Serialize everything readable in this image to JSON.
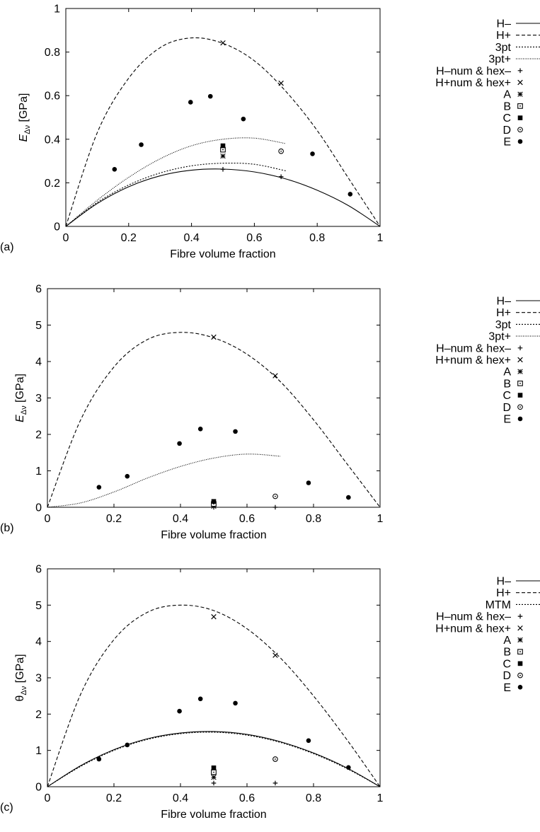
{
  "chart_data": [
    {
      "type": "line",
      "panel_label": "(a)",
      "xlabel": "Fibre volume fraction",
      "ylabel": {
        "main": "E",
        "sub": "Δν",
        "unit": " [GPa]"
      },
      "xlim": [
        0,
        1
      ],
      "ylim": [
        0,
        1
      ],
      "xticks": [
        "0",
        "0.2",
        "0.4",
        "0.6",
        "0.8",
        "1"
      ],
      "yticks": [
        "0",
        "0.2",
        "0.4",
        "0.6",
        "0.8",
        "1"
      ],
      "legend": "top-right",
      "series": [
        {
          "name": "H–",
          "style": "solid",
          "x": [
            0,
            0.1,
            0.2,
            0.3,
            0.4,
            0.5,
            0.6,
            0.7,
            0.8,
            0.9,
            1
          ],
          "values": [
            0,
            0.105,
            0.182,
            0.232,
            0.258,
            0.263,
            0.25,
            0.218,
            0.166,
            0.095,
            0
          ]
        },
        {
          "name": "H+",
          "style": "dashed",
          "x": [
            0,
            0.1,
            0.2,
            0.3,
            0.4,
            0.5,
            0.6,
            0.7,
            0.8,
            0.9,
            1
          ],
          "values": [
            0,
            0.43,
            0.68,
            0.82,
            0.865,
            0.84,
            0.76,
            0.62,
            0.44,
            0.22,
            0
          ]
        },
        {
          "name": "3pt",
          "style": "dotted",
          "x": [
            0,
            0.1,
            0.2,
            0.3,
            0.4,
            0.5,
            0.6,
            0.7
          ],
          "values": [
            0,
            0.11,
            0.19,
            0.245,
            0.278,
            0.29,
            0.285,
            0.255
          ]
        },
        {
          "name": "3pt+",
          "style": "fine-dotted",
          "x": [
            0,
            0.1,
            0.2,
            0.3,
            0.4,
            0.5,
            0.6,
            0.7
          ],
          "values": [
            0,
            0.12,
            0.225,
            0.31,
            0.37,
            0.4,
            0.405,
            0.38
          ]
        },
        {
          "name": "H–num & hex–",
          "marker": "plus",
          "points": [
            [
              0.5,
              0.262
            ],
            [
              0.685,
              0.228
            ]
          ]
        },
        {
          "name": "H+num & hex+",
          "marker": "cross",
          "points": [
            [
              0.5,
              0.842
            ],
            [
              0.685,
              0.657
            ]
          ]
        },
        {
          "name": "A",
          "marker": "star",
          "points": [
            [
              0.5,
              0.323
            ]
          ]
        },
        {
          "name": "B",
          "marker": "dotted-square",
          "points": [
            [
              0.5,
              0.352
            ]
          ]
        },
        {
          "name": "C",
          "marker": "filled-square",
          "points": [
            [
              0.5,
              0.37
            ]
          ]
        },
        {
          "name": "D",
          "marker": "dotted-circle",
          "points": [
            [
              0.685,
              0.345
            ]
          ]
        },
        {
          "name": "E",
          "marker": "filled-circle",
          "points": [
            [
              0.155,
              0.262
            ],
            [
              0.24,
              0.375
            ],
            [
              0.397,
              0.57
            ],
            [
              0.46,
              0.597
            ],
            [
              0.565,
              0.493
            ],
            [
              0.785,
              0.333
            ],
            [
              0.905,
              0.148
            ]
          ]
        }
      ]
    },
    {
      "type": "line",
      "panel_label": "(b)",
      "xlabel": "Fibre volume fraction",
      "ylabel": {
        "main": "E",
        "sub": "Δν",
        "unit": " [GPa]"
      },
      "xlim": [
        0,
        1
      ],
      "ylim": [
        0,
        6
      ],
      "xticks": [
        "0",
        "0.2",
        "0.4",
        "0.6",
        "0.8",
        "1"
      ],
      "yticks": [
        "0",
        "1",
        "2",
        "3",
        "4",
        "5",
        "6"
      ],
      "legend": "top-right",
      "series": [
        {
          "name": "H–",
          "style": "solid",
          "x": [
            0,
            1
          ],
          "values": [
            0,
            0
          ]
        },
        {
          "name": "H+",
          "style": "dashed",
          "x": [
            0,
            0.1,
            0.2,
            0.3,
            0.4,
            0.5,
            0.6,
            0.7,
            0.8,
            0.9,
            1
          ],
          "values": [
            0,
            2.4,
            3.85,
            4.6,
            4.8,
            4.65,
            4.2,
            3.45,
            2.4,
            1.2,
            0
          ]
        },
        {
          "name": "3pt",
          "style": "dotted",
          "x": [
            0,
            0.7
          ],
          "values": [
            0,
            0
          ]
        },
        {
          "name": "3pt+",
          "style": "fine-dotted",
          "x": [
            0,
            0.1,
            0.2,
            0.3,
            0.4,
            0.5,
            0.6,
            0.7
          ],
          "values": [
            0,
            0.12,
            0.42,
            0.8,
            1.12,
            1.35,
            1.46,
            1.4
          ]
        },
        {
          "name": "H–num & hex–",
          "marker": "plus",
          "points": [
            [
              0.5,
              0.0
            ],
            [
              0.685,
              0.0
            ]
          ]
        },
        {
          "name": "H+num & hex+",
          "marker": "cross",
          "points": [
            [
              0.5,
              4.67
            ],
            [
              0.685,
              3.61
            ]
          ]
        },
        {
          "name": "A",
          "marker": "star",
          "points": [
            [
              0.5,
              0.03
            ]
          ]
        },
        {
          "name": "B",
          "marker": "dotted-square",
          "points": [
            [
              0.5,
              0.09
            ]
          ]
        },
        {
          "name": "C",
          "marker": "filled-square",
          "points": [
            [
              0.5,
              0.16
            ]
          ]
        },
        {
          "name": "D",
          "marker": "dotted-circle",
          "points": [
            [
              0.685,
              0.3
            ]
          ]
        },
        {
          "name": "E",
          "marker": "filled-circle",
          "points": [
            [
              0.155,
              0.55
            ],
            [
              0.24,
              0.85
            ],
            [
              0.397,
              1.75
            ],
            [
              0.46,
              2.15
            ],
            [
              0.565,
              2.08
            ],
            [
              0.785,
              0.67
            ],
            [
              0.905,
              0.27
            ]
          ]
        }
      ]
    },
    {
      "type": "line",
      "panel_label": "(c)",
      "xlabel": "Fibre volume fraction",
      "ylabel": {
        "main": "θ",
        "sub": "Δν",
        "unit": " [GPa]"
      },
      "xlim": [
        0,
        1
      ],
      "ylim": [
        0,
        6
      ],
      "xticks": [
        "0",
        "0.2",
        "0.4",
        "0.6",
        "0.8",
        "1"
      ],
      "yticks": [
        "0",
        "1",
        "2",
        "3",
        "4",
        "5",
        "6"
      ],
      "legend": "top-right",
      "series": [
        {
          "name": "H–",
          "style": "solid",
          "x": [
            0,
            0.1,
            0.2,
            0.3,
            0.4,
            0.5,
            0.6,
            0.7,
            0.8,
            0.9,
            1
          ],
          "values": [
            0,
            0.58,
            1.02,
            1.32,
            1.48,
            1.52,
            1.44,
            1.24,
            0.93,
            0.52,
            0
          ]
        },
        {
          "name": "H+",
          "style": "dashed",
          "x": [
            0,
            0.1,
            0.2,
            0.3,
            0.4,
            0.5,
            0.6,
            0.7,
            0.8,
            0.9,
            1
          ],
          "values": [
            0,
            2.55,
            4.05,
            4.8,
            5.0,
            4.85,
            4.35,
            3.55,
            2.5,
            1.3,
            0
          ]
        },
        {
          "name": "MTM",
          "style": "dotted",
          "x": [
            0,
            0.1,
            0.2,
            0.3,
            0.4,
            0.5,
            0.6,
            0.7,
            0.8,
            0.9,
            1
          ],
          "values": [
            0,
            0.56,
            1.0,
            1.3,
            1.46,
            1.5,
            1.42,
            1.22,
            0.91,
            0.5,
            0
          ]
        },
        {
          "name": "H–num & hex–",
          "marker": "plus",
          "points": [
            [
              0.5,
              0.1
            ],
            [
              0.685,
              0.1
            ]
          ]
        },
        {
          "name": "H+num & hex+",
          "marker": "cross",
          "points": [
            [
              0.5,
              4.68
            ],
            [
              0.685,
              3.62
            ]
          ]
        },
        {
          "name": "A",
          "marker": "star",
          "points": [
            [
              0.5,
              0.26
            ]
          ]
        },
        {
          "name": "B",
          "marker": "dotted-square",
          "points": [
            [
              0.5,
              0.4
            ]
          ]
        },
        {
          "name": "C",
          "marker": "filled-square",
          "points": [
            [
              0.5,
              0.52
            ]
          ]
        },
        {
          "name": "D",
          "marker": "dotted-circle",
          "points": [
            [
              0.685,
              0.76
            ]
          ]
        },
        {
          "name": "E",
          "marker": "filled-circle",
          "points": [
            [
              0.155,
              0.76
            ],
            [
              0.24,
              1.15
            ],
            [
              0.397,
              2.08
            ],
            [
              0.46,
              2.42
            ],
            [
              0.565,
              2.3
            ],
            [
              0.785,
              1.27
            ],
            [
              0.905,
              0.53
            ]
          ]
        }
      ]
    }
  ]
}
